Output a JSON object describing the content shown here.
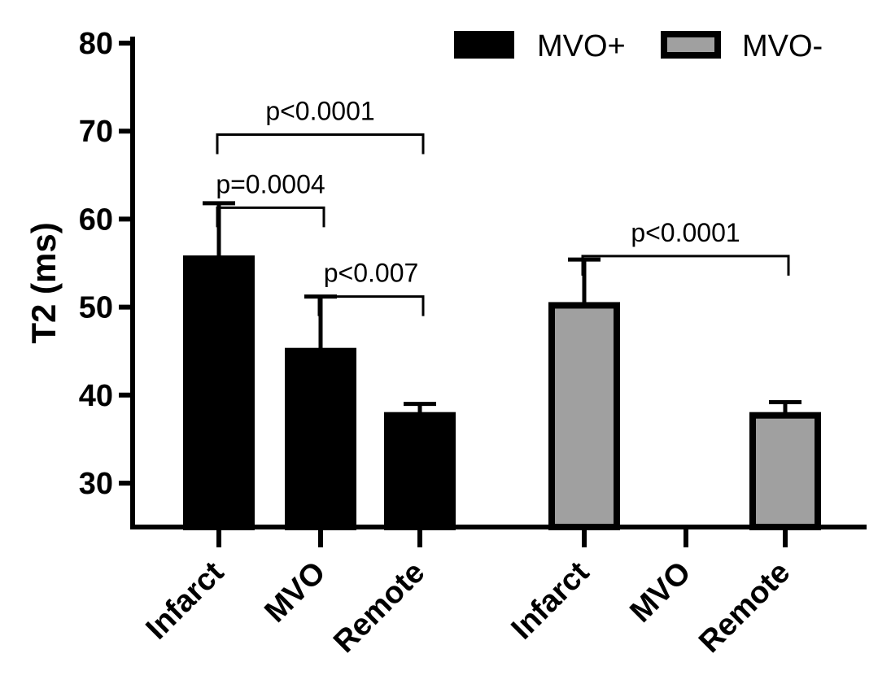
{
  "chart_data": {
    "type": "bar",
    "ylabel": "T2 (ms)",
    "xlabel": "",
    "title": "",
    "ylim": [
      25,
      80
    ],
    "yticks": [
      30,
      40,
      50,
      60,
      70,
      80
    ],
    "groups": [
      "MVO+",
      "MVO-"
    ],
    "categories": [
      "Infarct",
      "MVO",
      "Remote"
    ],
    "series": [
      {
        "name": "MVO+",
        "color": "#000000",
        "values": [
          55.5,
          45.0,
          37.7
        ],
        "errors": [
          6.3,
          6.2,
          1.3
        ]
      },
      {
        "name": "MVO-",
        "color": "#a0a0a0",
        "values": [
          50.2,
          null,
          37.7
        ],
        "errors": [
          5.2,
          null,
          1.5
        ]
      }
    ],
    "legend": [
      {
        "label": "MVO+",
        "color": "#000000"
      },
      {
        "label": "MVO-",
        "color": "#a0a0a0"
      }
    ],
    "legend_position": "top-right",
    "annotations": [
      {
        "label": "p<0.0001",
        "series": 0,
        "from": 0,
        "to": 2,
        "y": 69.6
      },
      {
        "label": "p=0.0004",
        "series": 0,
        "from": 0,
        "to": 1,
        "y": 61.3
      },
      {
        "label": "p<0.007",
        "series": 0,
        "from": 1,
        "to": 2,
        "y": 51.2
      },
      {
        "label": "p<0.0001",
        "series": 1,
        "from": 0,
        "to": 2,
        "y": 55.8
      }
    ]
  }
}
